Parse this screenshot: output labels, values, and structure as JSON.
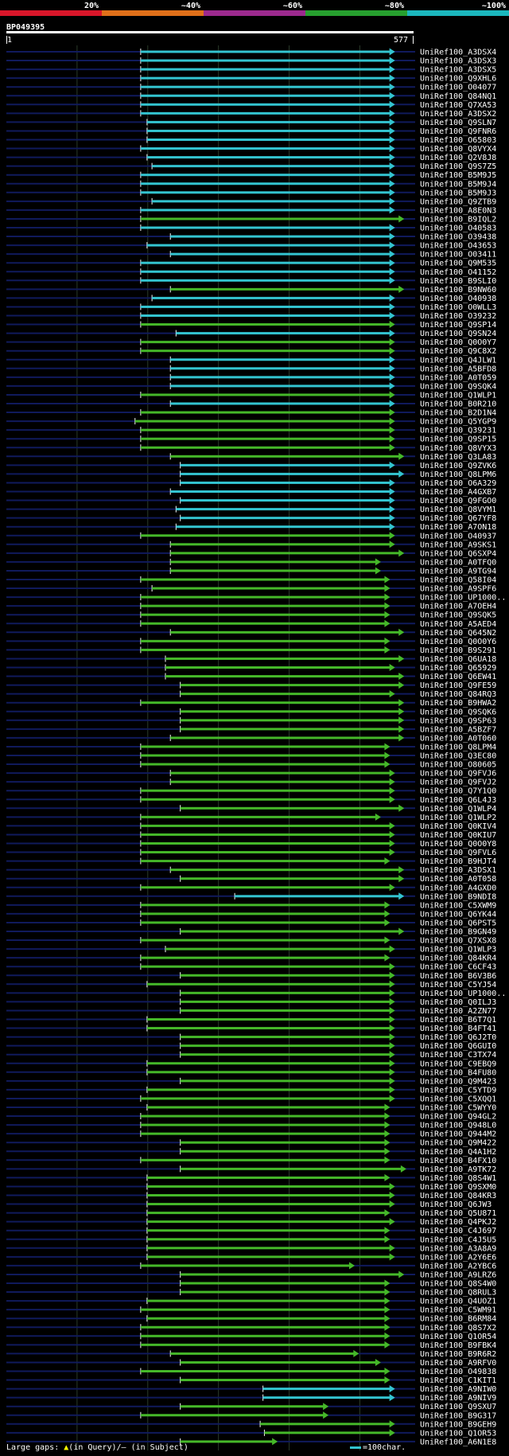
{
  "query_id": "BP049395",
  "coord_start": "1",
  "coord_end": "577",
  "colors": {
    "bands": [
      "#d8162a",
      "#e0701a",
      "#9c2a8e",
      "#27a02f",
      "#1bb7bd"
    ],
    "match_cyan": "#33c4d0",
    "match_green": "#45b829",
    "row_line": "#101a5c",
    "grid": "#2a3a2a"
  },
  "identity_labels": [
    "20%",
    "~40%",
    "~60%",
    "~80%",
    "~100%"
  ],
  "footer": {
    "large_gaps": "Large gaps:",
    "in_query": "(in Query)/",
    "in_subject": "(in Subject)",
    "scale": "=100char."
  },
  "chart_data": {
    "type": "alignment",
    "query_length": 577,
    "axis": [
      1,
      577
    ],
    "hits": [
      {
        "id": "UniRef100_A3DSX4",
        "start": 191,
        "end": 544,
        "color": "cyan"
      },
      {
        "id": "UniRef100_A3DSX3",
        "start": 191,
        "end": 544,
        "color": "cyan"
      },
      {
        "id": "UniRef100_A3DSX5",
        "start": 191,
        "end": 544,
        "color": "cyan"
      },
      {
        "id": "UniRef100_Q9XHL6",
        "start": 191,
        "end": 544,
        "color": "cyan"
      },
      {
        "id": "UniRef100_O04077",
        "start": 191,
        "end": 544,
        "color": "cyan"
      },
      {
        "id": "UniRef100_Q84NQ1",
        "start": 191,
        "end": 544,
        "color": "cyan"
      },
      {
        "id": "UniRef100_Q7XA53",
        "start": 191,
        "end": 544,
        "color": "cyan"
      },
      {
        "id": "UniRef100_A3DSX2",
        "start": 191,
        "end": 544,
        "color": "cyan"
      },
      {
        "id": "UniRef100_Q9SLN7",
        "start": 200,
        "end": 544,
        "color": "cyan"
      },
      {
        "id": "UniRef100_Q9FNR6",
        "start": 200,
        "end": 544,
        "color": "cyan"
      },
      {
        "id": "UniRef100_O65803",
        "start": 200,
        "end": 544,
        "color": "cyan"
      },
      {
        "id": "UniRef100_Q8VYX4",
        "start": 191,
        "end": 544,
        "color": "cyan"
      },
      {
        "id": "UniRef100_Q2V8J8",
        "start": 200,
        "end": 544,
        "color": "cyan"
      },
      {
        "id": "UniRef100_Q9S7Z5",
        "start": 207,
        "end": 544,
        "color": "cyan"
      },
      {
        "id": "UniRef100_B5M9J5",
        "start": 191,
        "end": 544,
        "color": "cyan"
      },
      {
        "id": "UniRef100_B5M9J4",
        "start": 191,
        "end": 544,
        "color": "cyan"
      },
      {
        "id": "UniRef100_B5M9J3",
        "start": 191,
        "end": 544,
        "color": "cyan"
      },
      {
        "id": "UniRef100_Q9ZTB9",
        "start": 207,
        "end": 544,
        "color": "cyan"
      },
      {
        "id": "UniRef100_A8E0N3",
        "start": 191,
        "end": 544,
        "color": "cyan"
      },
      {
        "id": "UniRef100_B9IQL2",
        "start": 191,
        "end": 557,
        "color": "green"
      },
      {
        "id": "UniRef100_O40583",
        "start": 191,
        "end": 544,
        "color": "cyan"
      },
      {
        "id": "UniRef100_O39438",
        "start": 233,
        "end": 544,
        "color": "cyan"
      },
      {
        "id": "UniRef100_O43653",
        "start": 200,
        "end": 544,
        "color": "cyan"
      },
      {
        "id": "UniRef100_O03411",
        "start": 233,
        "end": 544,
        "color": "cyan"
      },
      {
        "id": "UniRef100_Q9M535",
        "start": 191,
        "end": 544,
        "color": "cyan"
      },
      {
        "id": "UniRef100_O41152",
        "start": 191,
        "end": 544,
        "color": "cyan"
      },
      {
        "id": "UniRef100_B9SLI0",
        "start": 191,
        "end": 544,
        "color": "cyan"
      },
      {
        "id": "UniRef100_B9NW60",
        "start": 233,
        "end": 557,
        "color": "green"
      },
      {
        "id": "UniRef100_O40938",
        "start": 207,
        "end": 544,
        "color": "cyan"
      },
      {
        "id": "UniRef100_O0WLL3",
        "start": 191,
        "end": 544,
        "color": "cyan"
      },
      {
        "id": "UniRef100_O39232",
        "start": 191,
        "end": 544,
        "color": "cyan"
      },
      {
        "id": "UniRef100_Q9SP14",
        "start": 191,
        "end": 544,
        "color": "green"
      },
      {
        "id": "UniRef100_Q9SN24",
        "start": 241,
        "end": 544,
        "color": "cyan"
      },
      {
        "id": "UniRef100_Q0O0Y7",
        "start": 191,
        "end": 544,
        "color": "green"
      },
      {
        "id": "UniRef100_Q9C8X2",
        "start": 191,
        "end": 544,
        "color": "green"
      },
      {
        "id": "UniRef100_Q4JLW1",
        "start": 233,
        "end": 544,
        "color": "cyan"
      },
      {
        "id": "UniRef100_A5BFD8",
        "start": 233,
        "end": 544,
        "color": "cyan"
      },
      {
        "id": "UniRef100_A0T059",
        "start": 233,
        "end": 544,
        "color": "cyan"
      },
      {
        "id": "UniRef100_Q9SQK4",
        "start": 233,
        "end": 544,
        "color": "cyan"
      },
      {
        "id": "UniRef100_Q1WLP1",
        "start": 191,
        "end": 544,
        "color": "green"
      },
      {
        "id": "UniRef100_B0R210",
        "start": 233,
        "end": 544,
        "color": "cyan"
      },
      {
        "id": "UniRef100_B2D1N4",
        "start": 191,
        "end": 544,
        "color": "green"
      },
      {
        "id": "UniRef100_Q5YGP9",
        "start": 183,
        "end": 544,
        "color": "green"
      },
      {
        "id": "UniRef100_Q39231",
        "start": 191,
        "end": 544,
        "color": "green"
      },
      {
        "id": "UniRef100_Q9SP15",
        "start": 191,
        "end": 544,
        "color": "green"
      },
      {
        "id": "UniRef100_Q8VYX3",
        "start": 191,
        "end": 544,
        "color": "green"
      },
      {
        "id": "UniRef100_Q3LA83",
        "start": 233,
        "end": 557,
        "color": "green"
      },
      {
        "id": "UniRef100_Q9ZVK6",
        "start": 247,
        "end": 544,
        "color": "cyan"
      },
      {
        "id": "UniRef100_Q8LPM6",
        "start": 247,
        "end": 557,
        "color": "cyan"
      },
      {
        "id": "UniRef100_O6A329",
        "start": 247,
        "end": 544,
        "color": "cyan"
      },
      {
        "id": "UniRef100_A4GXB7",
        "start": 233,
        "end": 544,
        "color": "cyan"
      },
      {
        "id": "UniRef100_Q9FGO0",
        "start": 247,
        "end": 544,
        "color": "cyan"
      },
      {
        "id": "UniRef100_Q8VYM1",
        "start": 241,
        "end": 544,
        "color": "cyan"
      },
      {
        "id": "UniRef100_Q67YF8",
        "start": 247,
        "end": 544,
        "color": "cyan"
      },
      {
        "id": "UniRef100_A7ON18",
        "start": 241,
        "end": 544,
        "color": "cyan"
      },
      {
        "id": "UniRef100_O40937",
        "start": 191,
        "end": 544,
        "color": "green"
      },
      {
        "id": "UniRef100_A9SKS1",
        "start": 233,
        "end": 544,
        "color": "green"
      },
      {
        "id": "UniRef100_Q6SXP4",
        "start": 233,
        "end": 557,
        "color": "green"
      },
      {
        "id": "UniRef100_A0TFQ0",
        "start": 233,
        "end": 524,
        "color": "green"
      },
      {
        "id": "UniRef100_A9TG94",
        "start": 233,
        "end": 524,
        "color": "green"
      },
      {
        "id": "UniRef100_Q58I04",
        "start": 191,
        "end": 537,
        "color": "green"
      },
      {
        "id": "UniRef100_A9SPF6",
        "start": 207,
        "end": 537,
        "color": "green"
      },
      {
        "id": "UniRef100_UP1000..",
        "start": 191,
        "end": 537,
        "color": "green"
      },
      {
        "id": "UniRef100_A7OEH4",
        "start": 191,
        "end": 537,
        "color": "green"
      },
      {
        "id": "UniRef100_Q9SQK5",
        "start": 191,
        "end": 537,
        "color": "green"
      },
      {
        "id": "UniRef100_A5AED4",
        "start": 191,
        "end": 537,
        "color": "green"
      },
      {
        "id": "UniRef100_Q645N2",
        "start": 233,
        "end": 557,
        "color": "green"
      },
      {
        "id": "UniRef100_Q0O0Y6",
        "start": 191,
        "end": 537,
        "color": "green"
      },
      {
        "id": "UniRef100_B9S291",
        "start": 191,
        "end": 537,
        "color": "green"
      },
      {
        "id": "UniRef100_Q6UA18",
        "start": 226,
        "end": 557,
        "color": "green"
      },
      {
        "id": "UniRef100_Q65929",
        "start": 226,
        "end": 544,
        "color": "green"
      },
      {
        "id": "UniRef100_Q6EW41",
        "start": 226,
        "end": 557,
        "color": "green"
      },
      {
        "id": "UniRef100_Q9FE59",
        "start": 247,
        "end": 557,
        "color": "green"
      },
      {
        "id": "UniRef100_Q84RQ3",
        "start": 247,
        "end": 544,
        "color": "green"
      },
      {
        "id": "UniRef100_B9HWA2",
        "start": 191,
        "end": 557,
        "color": "green"
      },
      {
        "id": "UniRef100_Q9SQK6",
        "start": 247,
        "end": 557,
        "color": "green"
      },
      {
        "id": "UniRef100_Q9SP63",
        "start": 247,
        "end": 557,
        "color": "green"
      },
      {
        "id": "UniRef100_A5BZF7",
        "start": 247,
        "end": 557,
        "color": "green"
      },
      {
        "id": "UniRef100_A0T060",
        "start": 233,
        "end": 557,
        "color": "green"
      },
      {
        "id": "UniRef100_Q8LPM4",
        "start": 191,
        "end": 537,
        "color": "green"
      },
      {
        "id": "UniRef100_Q3EC80",
        "start": 191,
        "end": 537,
        "color": "green"
      },
      {
        "id": "UniRef100_O80605",
        "start": 191,
        "end": 537,
        "color": "green"
      },
      {
        "id": "UniRef100_Q9FVJ6",
        "start": 233,
        "end": 544,
        "color": "green"
      },
      {
        "id": "UniRef100_Q9FVJ2",
        "start": 233,
        "end": 544,
        "color": "green"
      },
      {
        "id": "UniRef100_Q7Y1Q0",
        "start": 191,
        "end": 544,
        "color": "green"
      },
      {
        "id": "UniRef100_Q6L4J3",
        "start": 191,
        "end": 544,
        "color": "green"
      },
      {
        "id": "UniRef100_Q1WLP4",
        "start": 247,
        "end": 557,
        "color": "green"
      },
      {
        "id": "UniRef100_Q1WLP2",
        "start": 191,
        "end": 524,
        "color": "green"
      },
      {
        "id": "UniRef100_Q0KIV4",
        "start": 191,
        "end": 544,
        "color": "green"
      },
      {
        "id": "UniRef100_Q0KIU7",
        "start": 191,
        "end": 544,
        "color": "green"
      },
      {
        "id": "UniRef100_Q0O0Y8",
        "start": 191,
        "end": 544,
        "color": "green"
      },
      {
        "id": "UniRef100_Q9FVL6",
        "start": 191,
        "end": 544,
        "color": "green"
      },
      {
        "id": "UniRef100_B9HJT4",
        "start": 191,
        "end": 537,
        "color": "green"
      },
      {
        "id": "UniRef100_A3DSX1",
        "start": 233,
        "end": 557,
        "color": "green"
      },
      {
        "id": "UniRef100_A0T058",
        "start": 247,
        "end": 557,
        "color": "green"
      },
      {
        "id": "UniRef100_A4GXD0",
        "start": 191,
        "end": 544,
        "color": "green"
      },
      {
        "id": "UniRef100_B9NDI8",
        "start": 324,
        "end": 557,
        "color": "cyan"
      },
      {
        "id": "UniRef100_C5XWM9",
        "start": 191,
        "end": 537,
        "color": "green"
      },
      {
        "id": "UniRef100_Q6YK44",
        "start": 191,
        "end": 537,
        "color": "green"
      },
      {
        "id": "UniRef100_Q6PST5",
        "start": 191,
        "end": 537,
        "color": "green"
      },
      {
        "id": "UniRef100_B9GN49",
        "start": 247,
        "end": 557,
        "color": "green"
      },
      {
        "id": "UniRef100_Q7XSX8",
        "start": 191,
        "end": 537,
        "color": "green"
      },
      {
        "id": "UniRef100_Q1WLP3",
        "start": 226,
        "end": 544,
        "color": "green"
      },
      {
        "id": "UniRef100_Q84KR4",
        "start": 191,
        "end": 537,
        "color": "green"
      },
      {
        "id": "UniRef100_C6CF43",
        "start": 191,
        "end": 544,
        "color": "green"
      },
      {
        "id": "UniRef100_B6V3B6",
        "start": 247,
        "end": 544,
        "color": "green"
      },
      {
        "id": "UniRef100_C5YJ54",
        "start": 200,
        "end": 544,
        "color": "green"
      },
      {
        "id": "UniRef100_UP1000..",
        "start": 247,
        "end": 544,
        "color": "green"
      },
      {
        "id": "UniRef100_Q0ILJ3",
        "start": 247,
        "end": 544,
        "color": "green"
      },
      {
        "id": "UniRef100_A2ZN77",
        "start": 247,
        "end": 544,
        "color": "green"
      },
      {
        "id": "UniRef100_B6T7Q1",
        "start": 200,
        "end": 544,
        "color": "green"
      },
      {
        "id": "UniRef100_B4FT41",
        "start": 200,
        "end": 544,
        "color": "green"
      },
      {
        "id": "UniRef100_Q6J2T0",
        "start": 247,
        "end": 544,
        "color": "green"
      },
      {
        "id": "UniRef100_Q6GUI0",
        "start": 247,
        "end": 544,
        "color": "green"
      },
      {
        "id": "UniRef100_C3TX74",
        "start": 247,
        "end": 544,
        "color": "green"
      },
      {
        "id": "UniRef100_C9EBQ9",
        "start": 200,
        "end": 544,
        "color": "green"
      },
      {
        "id": "UniRef100_B4FU80",
        "start": 200,
        "end": 544,
        "color": "green"
      },
      {
        "id": "UniRef100_Q9M423",
        "start": 247,
        "end": 544,
        "color": "green"
      },
      {
        "id": "UniRef100_C5YTD9",
        "start": 200,
        "end": 544,
        "color": "green"
      },
      {
        "id": "UniRef100_C5XQQ1",
        "start": 191,
        "end": 544,
        "color": "green"
      },
      {
        "id": "UniRef100_C5WYY0",
        "start": 200,
        "end": 537,
        "color": "green"
      },
      {
        "id": "UniRef100_Q94GL2",
        "start": 191,
        "end": 537,
        "color": "green"
      },
      {
        "id": "UniRef100_Q948L0",
        "start": 191,
        "end": 537,
        "color": "green"
      },
      {
        "id": "UniRef100_Q944M2",
        "start": 191,
        "end": 537,
        "color": "green"
      },
      {
        "id": "UniRef100_Q9M422",
        "start": 247,
        "end": 537,
        "color": "green"
      },
      {
        "id": "UniRef100_Q4A1H2",
        "start": 247,
        "end": 537,
        "color": "green"
      },
      {
        "id": "UniRef100_B4FX10",
        "start": 191,
        "end": 537,
        "color": "green"
      },
      {
        "id": "UniRef100_A9TK72",
        "start": 247,
        "end": 560,
        "color": "green"
      },
      {
        "id": "UniRef100_Q8S4W1",
        "start": 200,
        "end": 537,
        "color": "green"
      },
      {
        "id": "UniRef100_Q9SXM0",
        "start": 200,
        "end": 544,
        "color": "green"
      },
      {
        "id": "UniRef100_Q84KR3",
        "start": 200,
        "end": 544,
        "color": "green"
      },
      {
        "id": "UniRef100_Q6JW3",
        "start": 200,
        "end": 544,
        "color": "green"
      },
      {
        "id": "UniRef100_Q5U871",
        "start": 200,
        "end": 537,
        "color": "green"
      },
      {
        "id": "UniRef100_Q4PKJ2",
        "start": 200,
        "end": 544,
        "color": "green"
      },
      {
        "id": "UniRef100_C4J697",
        "start": 200,
        "end": 537,
        "color": "green"
      },
      {
        "id": "UniRef100_C4J5U5",
        "start": 200,
        "end": 537,
        "color": "green"
      },
      {
        "id": "UniRef100_A3A8A9",
        "start": 200,
        "end": 544,
        "color": "green"
      },
      {
        "id": "UniRef100_A2Y6E6",
        "start": 200,
        "end": 544,
        "color": "green"
      },
      {
        "id": "UniRef100_A2YBC6",
        "start": 191,
        "end": 487,
        "color": "green"
      },
      {
        "id": "UniRef100_A9LRZ6",
        "start": 247,
        "end": 557,
        "color": "green"
      },
      {
        "id": "UniRef100_Q8S4W0",
        "start": 247,
        "end": 537,
        "color": "green"
      },
      {
        "id": "UniRef100_Q8RUL3",
        "start": 247,
        "end": 537,
        "color": "green"
      },
      {
        "id": "UniRef100_Q4UOZ1",
        "start": 200,
        "end": 537,
        "color": "green"
      },
      {
        "id": "UniRef100_C5WM91",
        "start": 191,
        "end": 537,
        "color": "green"
      },
      {
        "id": "UniRef100_B6RM84",
        "start": 200,
        "end": 537,
        "color": "green"
      },
      {
        "id": "UniRef100_Q8S7X2",
        "start": 191,
        "end": 537,
        "color": "green"
      },
      {
        "id": "UniRef100_Q1OR54",
        "start": 191,
        "end": 537,
        "color": "green"
      },
      {
        "id": "UniRef100_B9FBK4",
        "start": 191,
        "end": 537,
        "color": "green"
      },
      {
        "id": "UniRef100_B9R6R2",
        "start": 233,
        "end": 493,
        "color": "green"
      },
      {
        "id": "UniRef100_A9RFV0",
        "start": 247,
        "end": 524,
        "color": "green"
      },
      {
        "id": "UniRef100_O49838",
        "start": 191,
        "end": 537,
        "color": "green"
      },
      {
        "id": "UniRef100_C1KIT1",
        "start": 247,
        "end": 537,
        "color": "green"
      },
      {
        "id": "UniRef100_A9NIW0",
        "start": 364,
        "end": 544,
        "color": "cyan"
      },
      {
        "id": "UniRef100_A9NIV9",
        "start": 364,
        "end": 544,
        "color": "cyan"
      },
      {
        "id": "UniRef100_Q9SXU7",
        "start": 247,
        "end": 450,
        "color": "green"
      },
      {
        "id": "UniRef100_B9G317",
        "start": 191,
        "end": 450,
        "color": "green"
      },
      {
        "id": "UniRef100_B9GEH9",
        "start": 360,
        "end": 544,
        "color": "green"
      },
      {
        "id": "UniRef100_Q1OR53",
        "start": 366,
        "end": 544,
        "color": "green"
      },
      {
        "id": "UniRef100_A6N1E8",
        "start": 247,
        "end": 378,
        "color": "green"
      }
    ]
  }
}
